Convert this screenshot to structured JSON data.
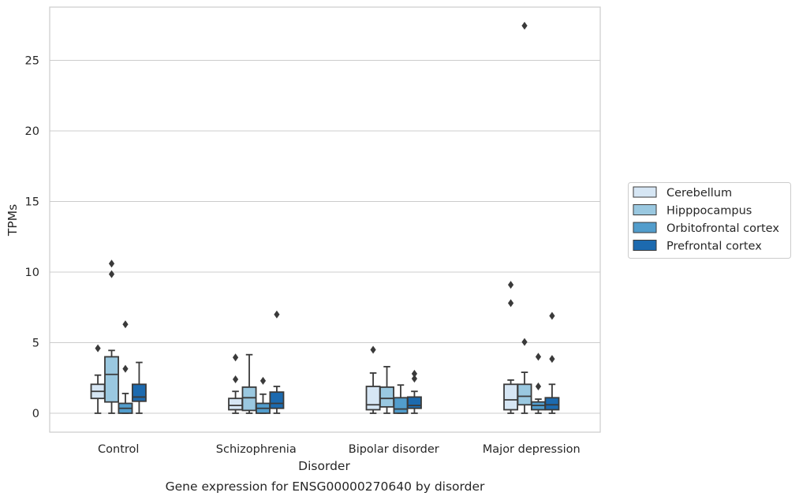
{
  "chart_data": {
    "type": "box",
    "caption": "Gene expression for ENSG00000270640 by disorder",
    "xlabel": "Disorder",
    "ylabel": "TPMs",
    "ylim": [
      -1.3,
      28.8
    ],
    "yticks": [
      0,
      5,
      10,
      15,
      20,
      25
    ],
    "grid": "horizontal",
    "legend_position": "right",
    "categories": [
      "Control",
      "Schizophrenia",
      "Bipolar disorder",
      "Major depression"
    ],
    "series": [
      {
        "name": "Cerebellum",
        "color": "#d6e6f4",
        "boxes": [
          {
            "whislo": 0.0,
            "q1": 1.05,
            "med": 1.55,
            "q3": 2.05,
            "whishi": 2.7,
            "fliers": [
              4.6
            ]
          },
          {
            "whislo": 0.0,
            "q1": 0.25,
            "med": 0.55,
            "q3": 1.05,
            "whishi": 1.55,
            "fliers": [
              2.4,
              3.95
            ]
          },
          {
            "whislo": 0.0,
            "q1": 0.25,
            "med": 0.6,
            "q3": 1.9,
            "whishi": 2.85,
            "fliers": [
              4.5
            ]
          },
          {
            "whislo": 0.0,
            "q1": 0.25,
            "med": 0.95,
            "q3": 2.05,
            "whishi": 2.35,
            "fliers": [
              7.8,
              9.1
            ]
          }
        ]
      },
      {
        "name": "Hipppocampus",
        "color": "#9ac8e0",
        "boxes": [
          {
            "whislo": 0.0,
            "q1": 0.8,
            "med": 2.75,
            "q3": 4.0,
            "whishi": 4.45,
            "fliers": [
              9.85,
              10.6
            ]
          },
          {
            "whislo": 0.0,
            "q1": 0.2,
            "med": 1.1,
            "q3": 1.85,
            "whishi": 4.15,
            "fliers": []
          },
          {
            "whislo": 0.0,
            "q1": 0.45,
            "med": 1.05,
            "q3": 1.85,
            "whishi": 3.3,
            "fliers": []
          },
          {
            "whislo": 0.0,
            "q1": 0.6,
            "med": 1.2,
            "q3": 2.05,
            "whishi": 2.9,
            "fliers": [
              5.05,
              27.45
            ]
          }
        ]
      },
      {
        "name": "Orbitofrontal cortex",
        "color": "#529dcc",
        "boxes": [
          {
            "whislo": 0.0,
            "q1": 0.0,
            "med": 0.35,
            "q3": 0.7,
            "whishi": 1.4,
            "fliers": [
              3.15,
              6.3
            ]
          },
          {
            "whislo": 0.0,
            "q1": 0.0,
            "med": 0.35,
            "q3": 0.7,
            "whishi": 1.35,
            "fliers": [
              2.3
            ]
          },
          {
            "whislo": 0.0,
            "q1": 0.0,
            "med": 0.3,
            "q3": 1.1,
            "whishi": 2.0,
            "fliers": []
          },
          {
            "whislo": 0.0,
            "q1": 0.25,
            "med": 0.55,
            "q3": 0.8,
            "whishi": 1.0,
            "fliers": [
              1.9,
              4.0
            ]
          }
        ]
      },
      {
        "name": "Prefrontal cortex",
        "color": "#1c6aaf",
        "boxes": [
          {
            "whislo": 0.0,
            "q1": 0.85,
            "med": 1.15,
            "q3": 2.05,
            "whishi": 3.6,
            "fliers": []
          },
          {
            "whislo": 0.0,
            "q1": 0.35,
            "med": 0.7,
            "q3": 1.5,
            "whishi": 1.9,
            "fliers": [
              7.0
            ]
          },
          {
            "whislo": 0.0,
            "q1": 0.35,
            "med": 0.55,
            "q3": 1.15,
            "whishi": 1.55,
            "fliers": [
              2.45,
              2.8
            ]
          },
          {
            "whislo": 0.0,
            "q1": 0.25,
            "med": 0.6,
            "q3": 1.1,
            "whishi": 2.05,
            "fliers": [
              3.85,
              6.9
            ]
          }
        ]
      }
    ]
  }
}
